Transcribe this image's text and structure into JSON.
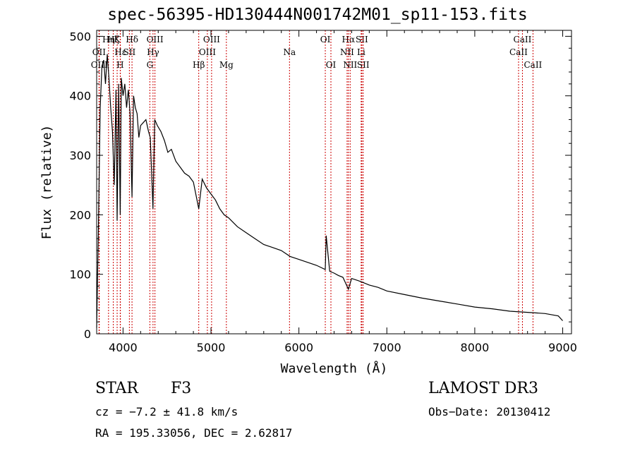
{
  "colors": {
    "spectrum": "#000000",
    "line_marker": "#cc0000",
    "axis": "#000000",
    "background": "#ffffff"
  },
  "chart_data": {
    "type": "line",
    "title": "spec-56395-HD130444N001742M01_sp11-153.fits",
    "xlabel": "Wavelength (Å)",
    "ylabel": "Flux (relative)",
    "xlim": [
      3700,
      9100
    ],
    "ylim": [
      0,
      510
    ],
    "xticks": [
      4000,
      5000,
      6000,
      7000,
      8000,
      9000
    ],
    "yticks": [
      0,
      100,
      200,
      300,
      400,
      500
    ],
    "series": [
      {
        "name": "spectrum",
        "x": [
          3700,
          3720,
          3740,
          3760,
          3780,
          3800,
          3820,
          3840,
          3860,
          3880,
          3900,
          3920,
          3933,
          3950,
          3968,
          3980,
          4000,
          4020,
          4040,
          4060,
          4080,
          4102,
          4120,
          4140,
          4160,
          4180,
          4200,
          4230,
          4260,
          4290,
          4310,
          4340,
          4360,
          4390,
          4430,
          4470,
          4510,
          4550,
          4600,
          4650,
          4700,
          4750,
          4800,
          4861,
          4900,
          4950,
          5000,
          5050,
          5100,
          5150,
          5200,
          5300,
          5400,
          5500,
          5600,
          5700,
          5800,
          5900,
          6000,
          6100,
          6200,
          6300,
          6310,
          6350,
          6400,
          6450,
          6500,
          6563,
          6600,
          6700,
          6800,
          6900,
          7000,
          7200,
          7400,
          7600,
          7800,
          8000,
          8200,
          8400,
          8600,
          8800,
          8950,
          9000
        ],
        "y": [
          10,
          180,
          380,
          450,
          460,
          420,
          470,
          430,
          380,
          340,
          250,
          410,
          190,
          420,
          200,
          430,
          400,
          420,
          380,
          410,
          370,
          230,
          400,
          380,
          370,
          330,
          350,
          355,
          360,
          340,
          330,
          210,
          360,
          350,
          340,
          325,
          305,
          310,
          290,
          280,
          270,
          265,
          255,
          210,
          260,
          245,
          235,
          225,
          210,
          200,
          195,
          180,
          170,
          160,
          150,
          145,
          140,
          130,
          125,
          120,
          115,
          108,
          165,
          105,
          102,
          98,
          95,
          75,
          93,
          88,
          82,
          78,
          72,
          66,
          60,
          55,
          50,
          45,
          42,
          38,
          36,
          34,
          30,
          22
        ]
      }
    ],
    "lines": [
      {
        "name": "Hη",
        "x": 3835,
        "row": 0
      },
      {
        "name": "OII",
        "x": 3727,
        "row": 1
      },
      {
        "name": "OIII",
        "x": 3730,
        "row": 2
      },
      {
        "name": "Hζ",
        "x": 3889,
        "row": 0
      },
      {
        "name": "K",
        "x": 3933,
        "row": 0
      },
      {
        "name": "H",
        "x": 3968,
        "row": 2
      },
      {
        "name": "Hε",
        "x": 3970,
        "row": 1
      },
      {
        "name": "SII",
        "x": 4072,
        "row": 1
      },
      {
        "name": "Hδ",
        "x": 4102,
        "row": 0
      },
      {
        "name": "OIII",
        "x": 4363,
        "row": 0
      },
      {
        "name": "Hγ",
        "x": 4341,
        "row": 1
      },
      {
        "name": "G",
        "x": 4305,
        "row": 2
      },
      {
        "name": "Hβ",
        "x": 4861,
        "row": 2
      },
      {
        "name": "OIII",
        "x": 5007,
        "row": 0
      },
      {
        "name": "OIII",
        "x": 4959,
        "row": 1
      },
      {
        "name": "Mg",
        "x": 5175,
        "row": 2
      },
      {
        "name": "Na",
        "x": 5893,
        "row": 1
      },
      {
        "name": "OI",
        "x": 6300,
        "row": 0
      },
      {
        "name": "OI",
        "x": 6364,
        "row": 2
      },
      {
        "name": "Hα",
        "x": 6563,
        "row": 0
      },
      {
        "name": "NII",
        "x": 6548,
        "row": 1
      },
      {
        "name": "NII",
        "x": 6583,
        "row": 2
      },
      {
        "name": "SII",
        "x": 6716,
        "row": 0
      },
      {
        "name": "Li",
        "x": 6708,
        "row": 1
      },
      {
        "name": "SII",
        "x": 6731,
        "row": 2
      },
      {
        "name": "CaII",
        "x": 8542,
        "row": 0
      },
      {
        "name": "CaII",
        "x": 8498,
        "row": 1
      },
      {
        "name": "CaII",
        "x": 8662,
        "row": 2
      }
    ]
  },
  "info": {
    "object_class": "STAR",
    "subclass": "F3",
    "survey": "LAMOST DR3",
    "redshift": "cz = −7.2 ± 41.8 km/s",
    "obs_date": "Obs−Date: 20130412",
    "coords": "RA = 195.33056, DEC =   2.62817"
  }
}
